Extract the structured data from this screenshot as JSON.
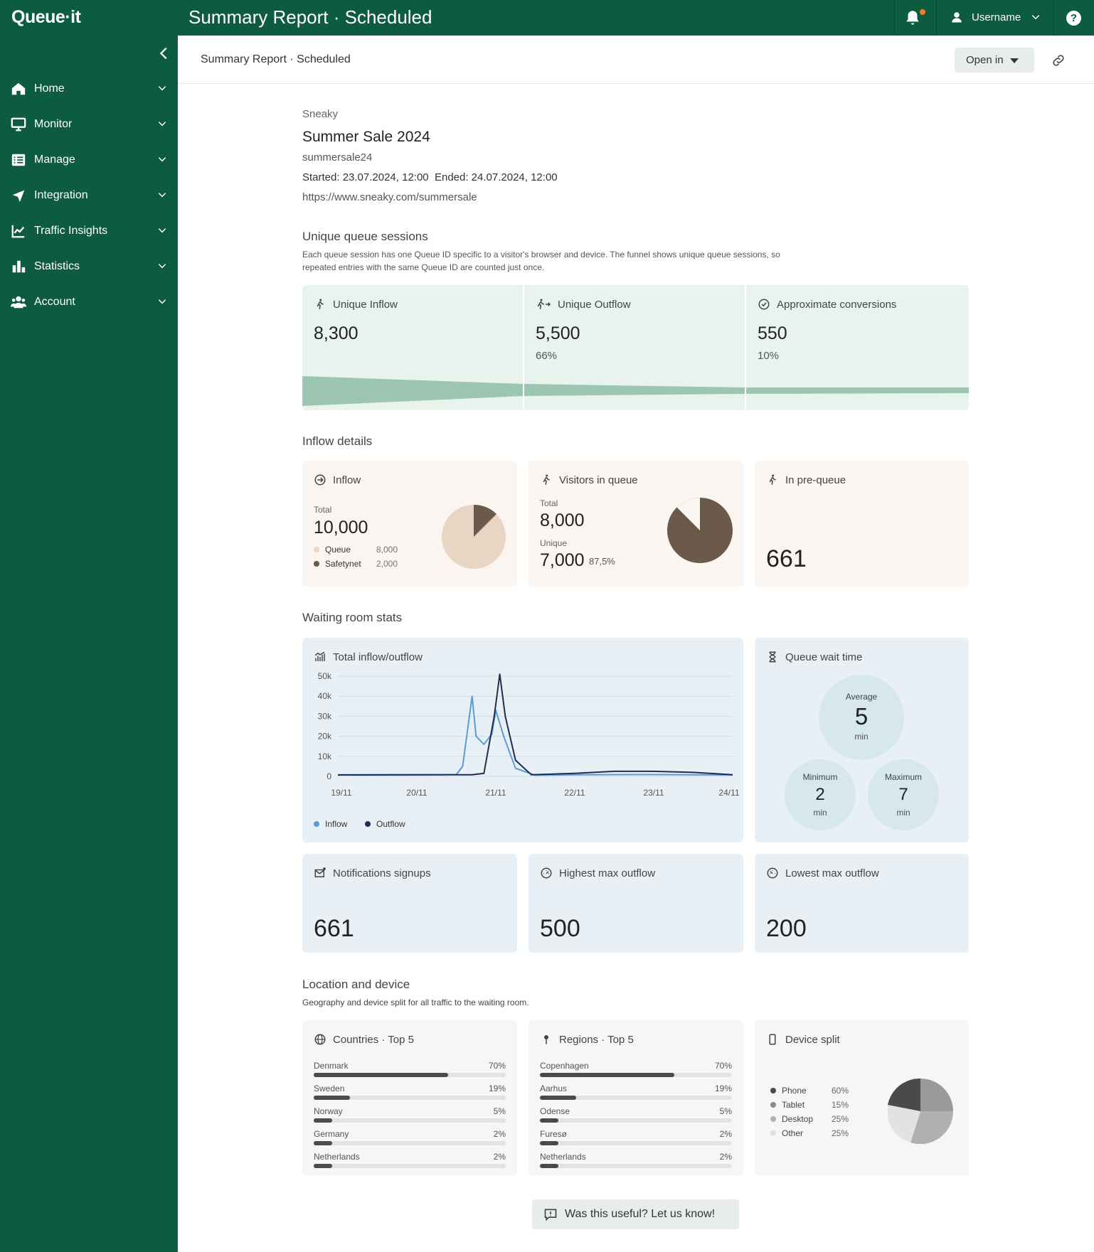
{
  "topbar": {
    "logo": "Queue·it",
    "title": "Summary Report · Scheduled",
    "username": "Username",
    "help": "?"
  },
  "sidebar": {
    "items": [
      {
        "label": "Home",
        "icon": "home-icon"
      },
      {
        "label": "Monitor",
        "icon": "monitor-icon"
      },
      {
        "label": "Manage",
        "icon": "list-icon"
      },
      {
        "label": "Integration",
        "icon": "integration-icon"
      },
      {
        "label": "Traffic Insights",
        "icon": "line-chart-icon"
      },
      {
        "label": "Statistics",
        "icon": "bar-chart-icon"
      },
      {
        "label": "Account",
        "icon": "users-icon"
      }
    ]
  },
  "subheader": {
    "title": "Summary Report · Scheduled",
    "open_in": "Open in"
  },
  "event": {
    "customer": "Sneaky",
    "name": "Summer Sale 2024",
    "id": "summersale24",
    "dates": "Started: 23.07.2024, 12:00  Ended: 24.07.2024, 12:00",
    "url": "https://www.sneaky.com/summersale"
  },
  "sessions": {
    "heading": "Unique queue sessions",
    "desc1": "Each queue session has one Queue ID specific to a visitor's browser and device. The funnel shows unique queue sessions, so",
    "desc2": "repeated entries with the same Queue ID are counted just once.",
    "inflow": {
      "label": "Unique Inflow",
      "value": "8,300"
    },
    "outflow": {
      "label": "Unique Outflow",
      "value": "5,500",
      "pct": "66%"
    },
    "conversions": {
      "label": "Approximate conversions",
      "value": "550",
      "pct": "10%"
    }
  },
  "inflow_details": {
    "heading": "Inflow details",
    "inflow": {
      "label": "Inflow",
      "total_label": "Total",
      "total": "10,000",
      "legend": [
        {
          "name": "Queue",
          "value": "8,000"
        },
        {
          "name": "Safetynet",
          "value": "2,000"
        }
      ]
    },
    "visitors": {
      "label": "Visitors in queue",
      "total_label": "Total",
      "total": "8,000",
      "unique_label": "Unique",
      "unique": "7,000",
      "unique_pct": "87,5%"
    },
    "prequeue": {
      "label": "In pre-queue",
      "value": "661"
    }
  },
  "waiting": {
    "heading": "Waiting room stats",
    "chart_title": "Total inflow/outflow",
    "legend": {
      "inflow": "Inflow",
      "outflow": "Outflow"
    },
    "wait": {
      "label": "Queue wait time",
      "avg_label": "Average",
      "avg": "5",
      "min_label": "Minimum",
      "min": "2",
      "max_label": "Maximum",
      "max": "7",
      "unit": "min"
    },
    "notifications": {
      "label": "Notifications signups",
      "value": "661"
    },
    "highest": {
      "label": "Highest max outflow",
      "value": "500"
    },
    "lowest": {
      "label": "Lowest max outflow",
      "value": "200"
    }
  },
  "location": {
    "heading": "Location and device",
    "desc": "Geography and device split for all traffic to the waiting room.",
    "countries": {
      "label": "Countries · Top 5",
      "rows": [
        {
          "name": "Denmark",
          "value": "70%",
          "pct": 70
        },
        {
          "name": "Sweden",
          "value": "19%",
          "pct": 19
        },
        {
          "name": "Norway",
          "value": "5%",
          "pct": 5
        },
        {
          "name": "Germany",
          "value": "2%",
          "pct": 2
        },
        {
          "name": "Netherlands",
          "value": "2%",
          "pct": 2
        }
      ]
    },
    "regions": {
      "label": "Regions · Top 5",
      "rows": [
        {
          "name": "Copenhagen",
          "value": "70%",
          "pct": 70
        },
        {
          "name": "Aarhus",
          "value": "19%",
          "pct": 19
        },
        {
          "name": "Odense",
          "value": "5%",
          "pct": 5
        },
        {
          "name": "Furesø",
          "value": "2%",
          "pct": 2
        },
        {
          "name": "Netherlands",
          "value": "2%",
          "pct": 2
        }
      ]
    },
    "device": {
      "label": "Device split",
      "rows": [
        {
          "name": "Phone",
          "value": "60%",
          "color": "#4a4a4a"
        },
        {
          "name": "Tablet",
          "value": "15%",
          "color": "#8a8a8a"
        },
        {
          "name": "Desktop",
          "value": "25%",
          "color": "#b0b0b0"
        },
        {
          "name": "Other",
          "value": "25%",
          "color": "#e0e0e0"
        }
      ]
    }
  },
  "feedback": "Was this useful? Let us know!",
  "chart_data": {
    "type": "line",
    "title": "Total inflow/outflow",
    "x": [
      "19/11",
      "20/11",
      "21/11",
      "22/11",
      "23/11",
      "24/11"
    ],
    "yticks": [
      "0",
      "10k",
      "20k",
      "30k",
      "40k",
      "50k"
    ],
    "ylim": [
      0,
      50000
    ],
    "series": [
      {
        "name": "Inflow",
        "color": "#5b9bd5",
        "points": [
          [
            0,
            800
          ],
          [
            1.5,
            900
          ],
          [
            1.58,
            5000
          ],
          [
            1.7,
            40000
          ],
          [
            1.75,
            20000
          ],
          [
            1.85,
            16000
          ],
          [
            1.95,
            21000
          ],
          [
            2.0,
            33000
          ],
          [
            2.1,
            20000
          ],
          [
            2.25,
            4000
          ],
          [
            2.5,
            600
          ],
          [
            3,
            800
          ],
          [
            4,
            900
          ],
          [
            5,
            700
          ]
        ]
      },
      {
        "name": "Outflow",
        "color": "#1f2f4f",
        "points": [
          [
            0,
            700
          ],
          [
            1.7,
            800
          ],
          [
            1.85,
            1500
          ],
          [
            1.98,
            30000
          ],
          [
            2.05,
            51000
          ],
          [
            2.12,
            30000
          ],
          [
            2.25,
            8000
          ],
          [
            2.45,
            800
          ],
          [
            3,
            1500
          ],
          [
            3.5,
            2500
          ],
          [
            4,
            2500
          ],
          [
            4.5,
            2000
          ],
          [
            5,
            800
          ]
        ]
      }
    ]
  }
}
